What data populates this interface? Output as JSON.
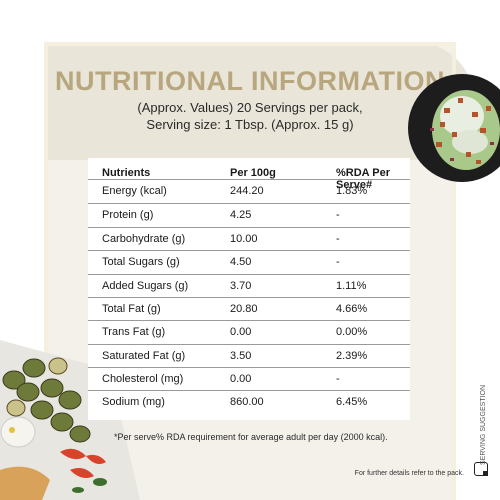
{
  "title": "NUTRITIONAL INFORMATION",
  "subtitle_line1": "(Approx. Values)  20 Servings per pack,",
  "subtitle_line2": "Serving size: 1 Tbsp. (Approx. 15 g)",
  "table": {
    "headers": [
      "Nutrients",
      "Per 100g",
      "%RDA Per Serve#"
    ],
    "rows": [
      {
        "nutrient": "Energy (kcal)",
        "per100g": "244.20",
        "rda": "1.83%"
      },
      {
        "nutrient": "Protein (g)",
        "per100g": "4.25",
        "rda": "-"
      },
      {
        "nutrient": "Carbohydrate (g)",
        "per100g": "10.00",
        "rda": "-"
      },
      {
        "nutrient": "Total Sugars (g)",
        "per100g": "4.50",
        "rda": "-"
      },
      {
        "nutrient": "Added Sugars (g)",
        "per100g": "3.70",
        "rda": "1.11%"
      },
      {
        "nutrient": "Total Fat (g)",
        "per100g": "20.80",
        "rda": "4.66%"
      },
      {
        "nutrient": "Trans Fat (g)",
        "per100g": "0.00",
        "rda": "0.00%"
      },
      {
        "nutrient": "Saturated Fat (g)",
        "per100g": "3.50",
        "rda": "2.39%"
      },
      {
        "nutrient": "Cholesterol (mg)",
        "per100g": "0.00",
        "rda": "-"
      },
      {
        "nutrient": "Sodium (mg)",
        "per100g": "860.00",
        "rda": "6.45%"
      }
    ]
  },
  "footnote": "*Per serve% RDA requirement for average adult per day (2000 kcal).",
  "fine_print": "For further details refer to the pack.",
  "side_label": "SERVING SUGGESTION",
  "colors": {
    "title": "#b8a77e",
    "panel": "#f3f1ea",
    "blob": "#e9e5d8"
  }
}
